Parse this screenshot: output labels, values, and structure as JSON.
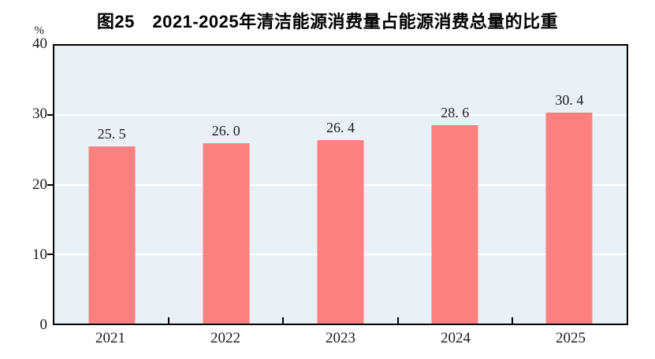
{
  "chart_data": {
    "type": "bar",
    "title": "图25　2021-2025年清洁能源消费量占能源消费总量的比重",
    "unit_label": "%",
    "categories": [
      "2021",
      "2022",
      "2023",
      "2024",
      "2025"
    ],
    "values": [
      25.5,
      26.0,
      26.4,
      28.6,
      30.4
    ],
    "value_labels": [
      "25. 5",
      "26. 0",
      "26. 4",
      "28. 6",
      "30. 4"
    ],
    "xlabel": "",
    "ylabel": "%",
    "ylim": [
      0,
      40
    ],
    "yticks": [
      0,
      10,
      20,
      30,
      40
    ],
    "grid": "horizontal",
    "legend_position": "none",
    "colors": {
      "bar": "#FB8080",
      "plot_background": "#EAF1F6",
      "gridline": "#FFFFFF",
      "axis": "#000000",
      "text": "#1A1A24"
    }
  }
}
